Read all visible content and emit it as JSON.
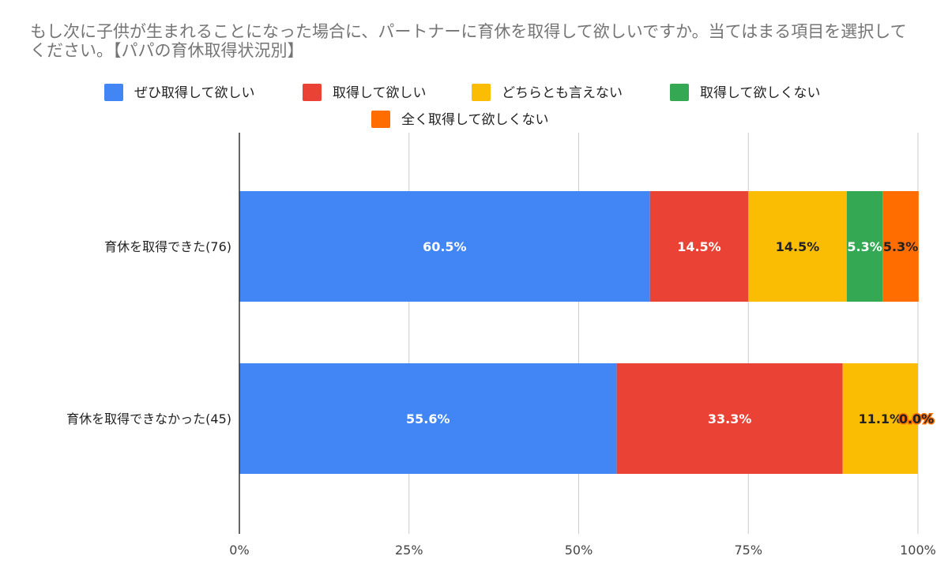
{
  "chart_data": {
    "type": "bar",
    "orientation": "horizontal",
    "stacked": "percent",
    "title": "もし次に子供が生まれることになった場合に、パートナーに育休を取得して欲しいですか。当てはまる項目を選択してください。【パパの育休取得状況別】",
    "categories": [
      "育休を取得できた(76)",
      "育休を取得できなかった(45)"
    ],
    "series": [
      {
        "name": "ぜひ取得して欲しい",
        "color": "#4285f4",
        "values": [
          60.5,
          55.6
        ],
        "labels": [
          "60.5%",
          "55.6%"
        ],
        "label_color": "#ffffff"
      },
      {
        "name": "取得して欲しい",
        "color": "#ea4335",
        "values": [
          14.5,
          33.3
        ],
        "labels": [
          "14.5%",
          "33.3%"
        ],
        "label_color": "#ffffff"
      },
      {
        "name": "どちらとも言えない",
        "color": "#fbbc04",
        "values": [
          14.5,
          11.1
        ],
        "labels": [
          "14.5%",
          "11.1%"
        ],
        "label_color": "#222222"
      },
      {
        "name": "取得して欲しくない",
        "color": "#34a853",
        "values": [
          5.3,
          0.0
        ],
        "labels": [
          "5.3%",
          ""
        ],
        "label_color": "#ffffff"
      },
      {
        "name": "全く取得して欲しくない",
        "color": "#ff6d01",
        "values": [
          5.3,
          0.0
        ],
        "labels": [
          "5.3%",
          "0.0%"
        ],
        "label_color": "#222222"
      }
    ],
    "xlim": [
      0,
      100
    ],
    "x_ticks": [
      "0%",
      "25%",
      "50%",
      "75%",
      "100%"
    ],
    "grid": true,
    "legend_position": "top"
  }
}
